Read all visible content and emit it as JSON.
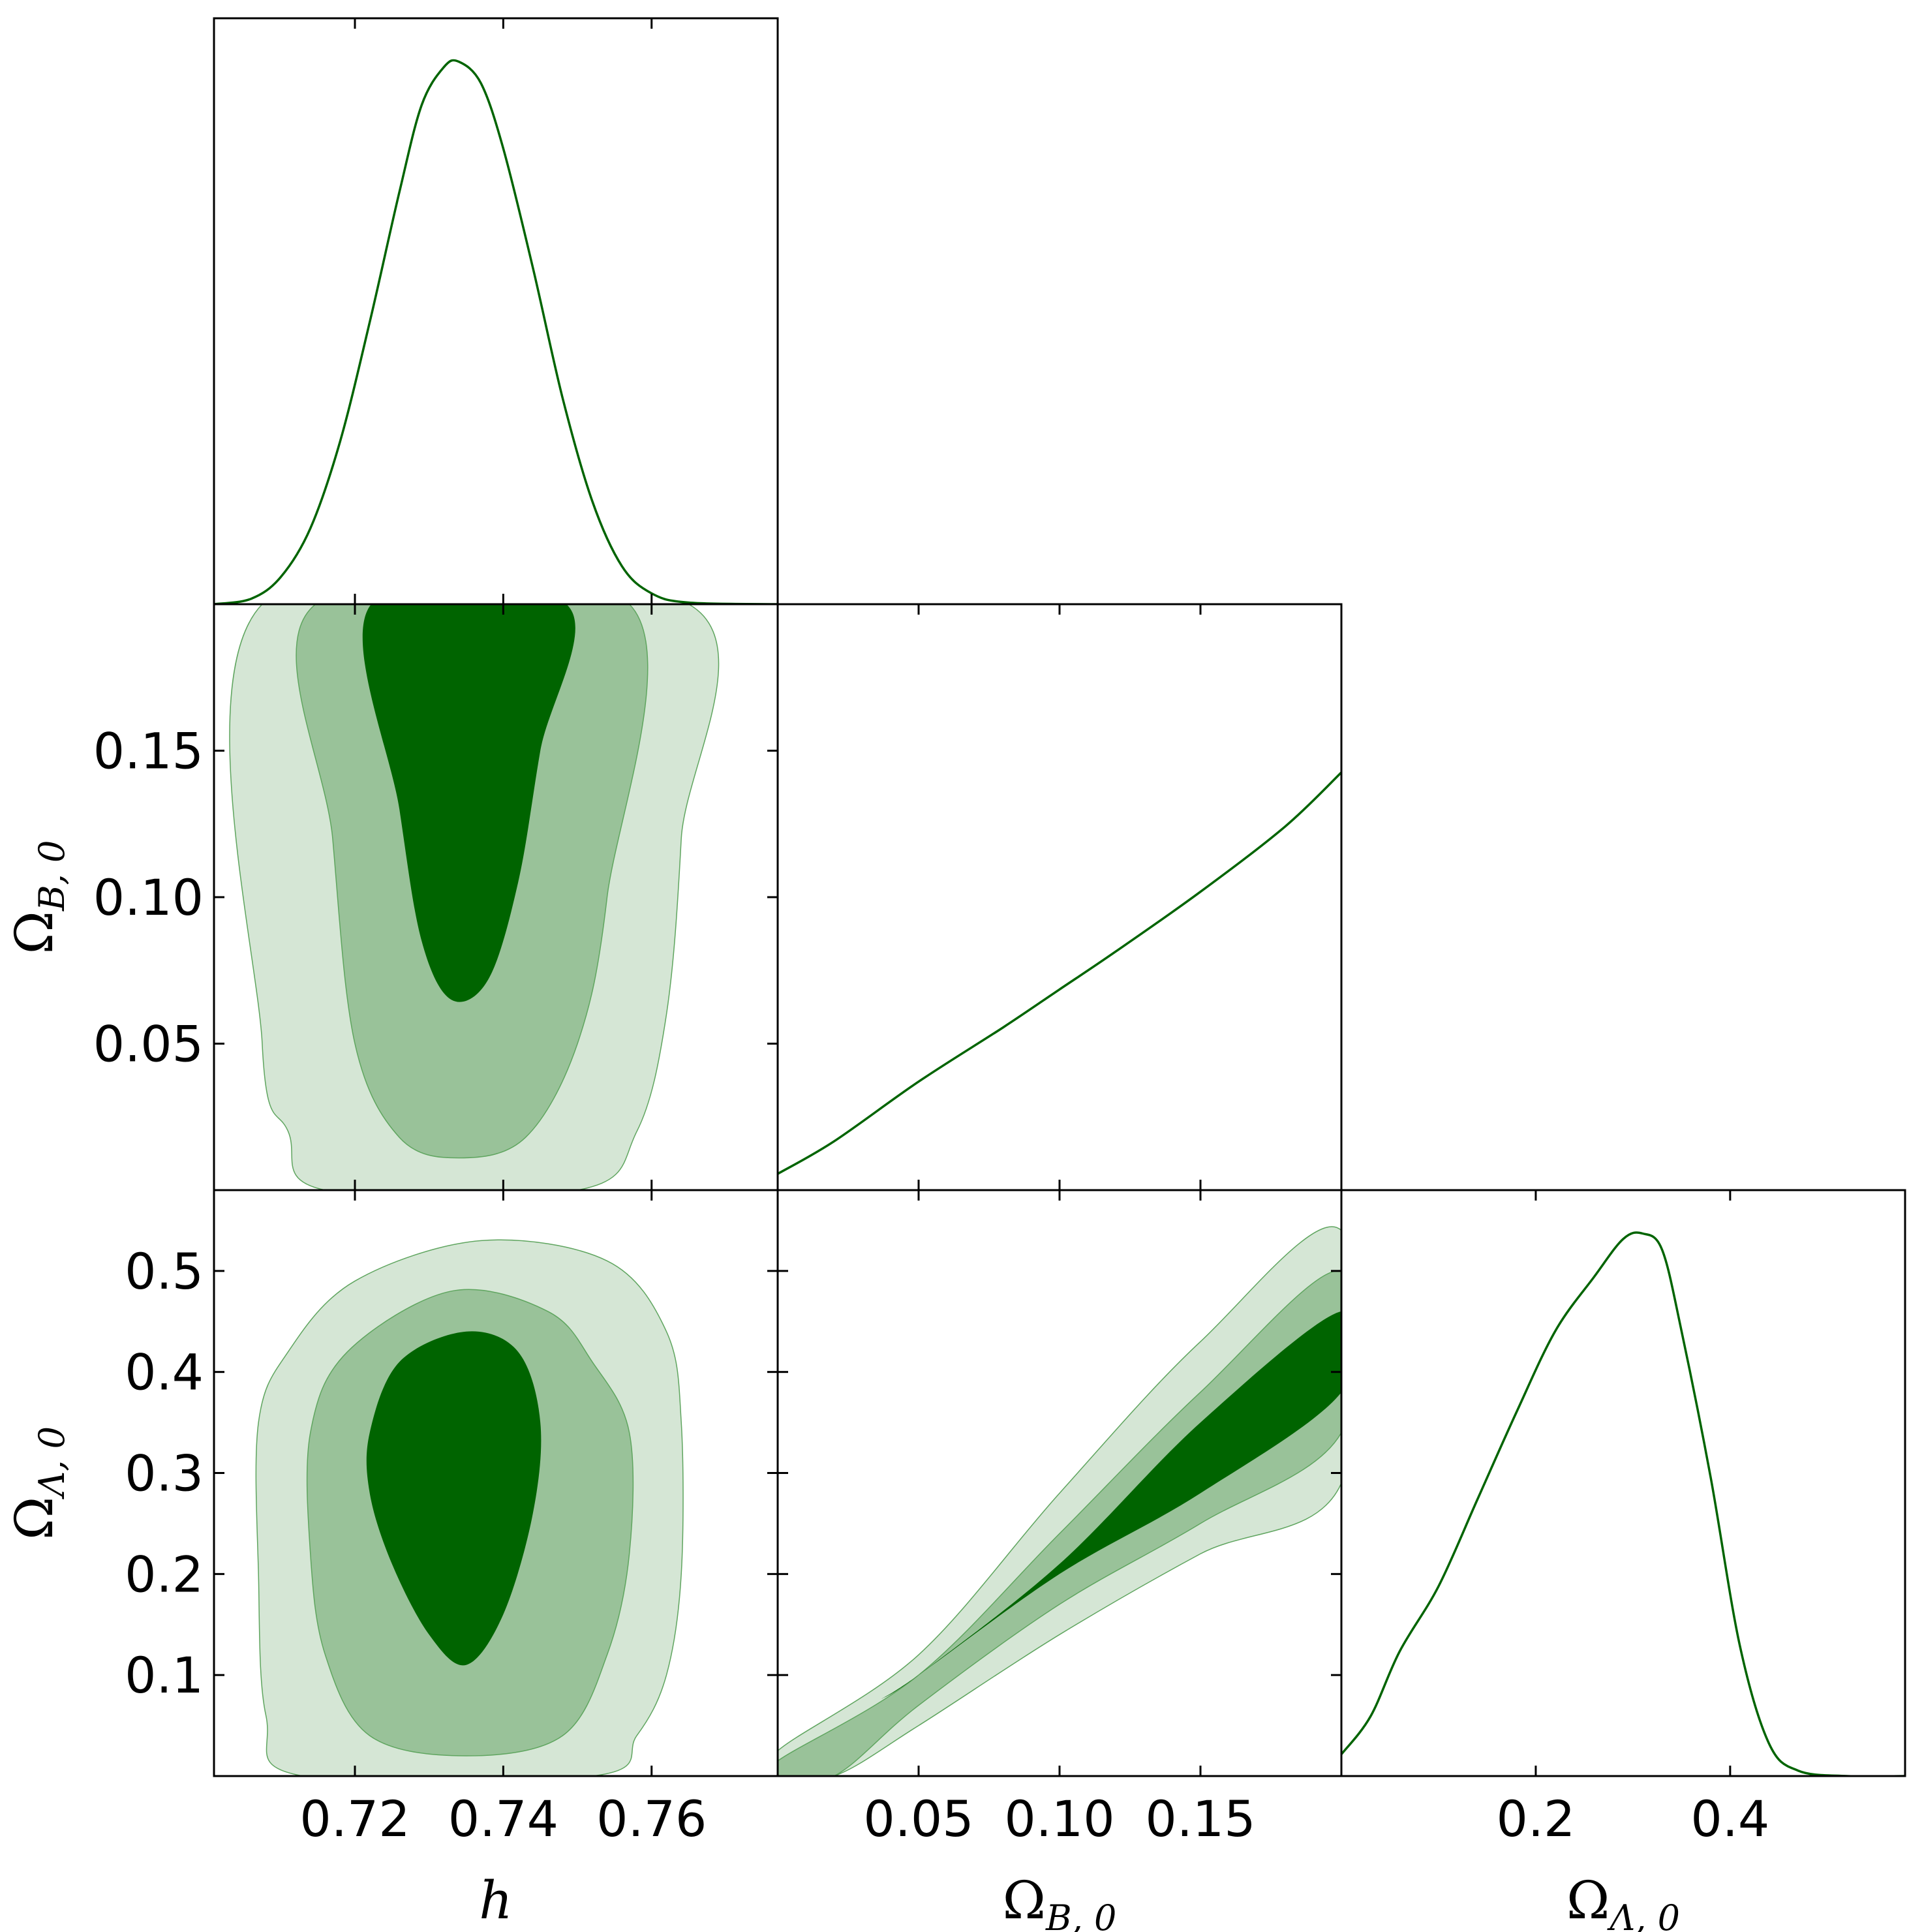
{
  "colors": {
    "line": "#006400",
    "contour_68": "#006400",
    "contour_95": "#99c299",
    "contour_99": "#d5e6d5",
    "contour_edge": "#5fa55f"
  },
  "chart_data": {
    "type": "corner",
    "parameters": [
      {
        "key": "h",
        "label": "h",
        "range": [
          0.701,
          0.777
        ],
        "ticks": [
          "0.72",
          "0.74",
          "0.76"
        ],
        "tick_values": [
          0.72,
          0.74,
          0.76
        ]
      },
      {
        "key": "omega_b0",
        "label_main": "Ω",
        "label_sub": "B, 0",
        "range": [
          0.0,
          0.2
        ],
        "ticks": [
          "0.05",
          "0.10",
          "0.15"
        ],
        "tick_values": [
          0.05,
          0.1,
          0.15
        ]
      },
      {
        "key": "omega_l0",
        "label_main": "Ω",
        "label_sub": "Λ, 0",
        "range": [
          0.0,
          0.58
        ],
        "ticks": [
          "0.1",
          "0.2",
          "0.3",
          "0.4",
          "0.5"
        ],
        "tick_values": [
          0.1,
          0.2,
          0.3,
          0.4,
          0.5
        ],
        "x_ticks": [
          "0.2",
          "0.4"
        ],
        "x_tick_values": [
          0.2,
          0.4
        ]
      }
    ],
    "marginals": [
      {
        "param": "h",
        "points": [
          [
            0.701,
            0.0
          ],
          [
            0.706,
            0.01
          ],
          [
            0.71,
            0.05
          ],
          [
            0.714,
            0.14
          ],
          [
            0.718,
            0.3
          ],
          [
            0.722,
            0.52
          ],
          [
            0.726,
            0.76
          ],
          [
            0.729,
            0.92
          ],
          [
            0.732,
            0.99
          ],
          [
            0.734,
            1.0
          ],
          [
            0.737,
            0.96
          ],
          [
            0.74,
            0.84
          ],
          [
            0.744,
            0.62
          ],
          [
            0.748,
            0.38
          ],
          [
            0.752,
            0.19
          ],
          [
            0.756,
            0.07
          ],
          [
            0.76,
            0.02
          ],
          [
            0.765,
            0.003
          ],
          [
            0.777,
            0.0
          ]
        ]
      },
      {
        "param": "omega_b0",
        "points": [
          [
            0.0,
            0.03
          ],
          [
            0.02,
            0.09
          ],
          [
            0.05,
            0.2
          ],
          [
            0.08,
            0.3
          ],
          [
            0.1,
            0.37
          ],
          [
            0.12,
            0.44
          ],
          [
            0.15,
            0.55
          ],
          [
            0.18,
            0.67
          ],
          [
            0.2,
            0.77
          ]
        ]
      },
      {
        "param": "omega_l0",
        "points": [
          [
            0.0,
            0.04
          ],
          [
            0.03,
            0.11
          ],
          [
            0.06,
            0.23
          ],
          [
            0.1,
            0.35
          ],
          [
            0.14,
            0.51
          ],
          [
            0.18,
            0.67
          ],
          [
            0.22,
            0.82
          ],
          [
            0.26,
            0.92
          ],
          [
            0.29,
            0.99
          ],
          [
            0.31,
            1.0
          ],
          [
            0.33,
            0.97
          ],
          [
            0.35,
            0.82
          ],
          [
            0.38,
            0.55
          ],
          [
            0.41,
            0.24
          ],
          [
            0.44,
            0.06
          ],
          [
            0.47,
            0.01
          ],
          [
            0.52,
            0.0
          ],
          [
            0.58,
            0.0
          ]
        ]
      }
    ],
    "contours": [
      {
        "x": "h",
        "y": "omega_b0",
        "levels": [
          {
            "level": "99",
            "points": [
              [
                0.7075,
                0.2
              ],
              [
                0.7075,
                0.05
              ],
              [
                0.711,
                0.02
              ],
              [
                0.716,
                0.0
              ],
              [
                0.75,
                0.0
              ],
              [
                0.758,
                0.02
              ],
              [
                0.762,
                0.06
              ],
              [
                0.764,
                0.12
              ],
              [
                0.765,
                0.2
              ]
            ]
          },
          {
            "level": "95",
            "points": [
              [
                0.7147,
                0.2
              ],
              [
                0.717,
                0.12
              ],
              [
                0.72,
                0.05
              ],
              [
                0.726,
                0.018
              ],
              [
                0.734,
                0.011
              ],
              [
                0.743,
                0.018
              ],
              [
                0.75,
                0.05
              ],
              [
                0.754,
                0.1
              ],
              [
                0.757,
                0.2
              ]
            ]
          },
          {
            "level": "68",
            "points": [
              [
                0.7222,
                0.2
              ],
              [
                0.726,
                0.13
              ],
              [
                0.729,
                0.085
              ],
              [
                0.733,
                0.065
              ],
              [
                0.738,
                0.072
              ],
              [
                0.742,
                0.105
              ],
              [
                0.745,
                0.15
              ],
              [
                0.7485,
                0.2
              ]
            ]
          }
        ]
      },
      {
        "x": "h",
        "y": "omega_l0",
        "levels": [
          {
            "level": "99",
            "points": [
              [
                0.707,
                0.35
              ],
              [
                0.711,
                0.42
              ],
              [
                0.72,
                0.49
              ],
              [
                0.737,
                0.53
              ],
              [
                0.754,
                0.51
              ],
              [
                0.762,
                0.44
              ],
              [
                0.764,
                0.35
              ],
              [
                0.764,
                0.2
              ],
              [
                0.762,
                0.1
              ],
              [
                0.758,
                0.04
              ],
              [
                0.752,
                0.0
              ],
              [
                0.713,
                0.0
              ],
              [
                0.708,
                0.06
              ],
              [
                0.707,
                0.2
              ]
            ]
          },
          {
            "level": "95",
            "points": [
              [
                0.714,
                0.34
              ],
              [
                0.719,
                0.42
              ],
              [
                0.733,
                0.48
              ],
              [
                0.746,
                0.46
              ],
              [
                0.752,
                0.41
              ],
              [
                0.757,
                0.34
              ],
              [
                0.757,
                0.22
              ],
              [
                0.754,
                0.12
              ],
              [
                0.748,
                0.04
              ],
              [
                0.735,
                0.02
              ],
              [
                0.722,
                0.04
              ],
              [
                0.716,
                0.12
              ],
              [
                0.714,
                0.22
              ]
            ]
          },
          {
            "level": "68",
            "points": [
              [
                0.722,
                0.34
              ],
              [
                0.726,
                0.41
              ],
              [
                0.735,
                0.44
              ],
              [
                0.742,
                0.42
              ],
              [
                0.745,
                0.35
              ],
              [
                0.744,
                0.26
              ],
              [
                0.74,
                0.16
              ],
              [
                0.735,
                0.11
              ],
              [
                0.73,
                0.14
              ],
              [
                0.725,
                0.21
              ],
              [
                0.722,
                0.28
              ]
            ]
          }
        ]
      },
      {
        "x": "omega_b0",
        "y": "omega_l0",
        "levels": [
          {
            "level": "99",
            "points": [
              [
                0.0,
                0.0
              ],
              [
                0.0,
                0.025
              ],
              [
                0.05,
                0.12
              ],
              [
                0.1,
                0.28
              ],
              [
                0.15,
                0.43
              ],
              [
                0.2,
                0.54
              ],
              [
                0.2,
                0.29
              ],
              [
                0.15,
                0.22
              ],
              [
                0.1,
                0.14
              ],
              [
                0.05,
                0.05
              ],
              [
                0.02,
                0.0
              ]
            ]
          },
          {
            "level": "95",
            "points": [
              [
                0.0,
                0.0
              ],
              [
                0.0,
                0.015
              ],
              [
                0.05,
                0.1
              ],
              [
                0.1,
                0.24
              ],
              [
                0.15,
                0.38
              ],
              [
                0.2,
                0.5
              ],
              [
                0.2,
                0.34
              ],
              [
                0.15,
                0.25
              ],
              [
                0.1,
                0.17
              ],
              [
                0.05,
                0.07
              ],
              [
                0.02,
                0.0
              ]
            ]
          },
          {
            "level": "68",
            "points": [
              [
                0.036,
                0.075
              ],
              [
                0.05,
                0.1
              ],
              [
                0.1,
                0.21
              ],
              [
                0.15,
                0.35
              ],
              [
                0.2,
                0.46
              ],
              [
                0.2,
                0.38
              ],
              [
                0.15,
                0.28
              ],
              [
                0.1,
                0.2
              ],
              [
                0.05,
                0.1
              ],
              [
                0.036,
                0.075
              ]
            ]
          }
        ]
      }
    ]
  }
}
